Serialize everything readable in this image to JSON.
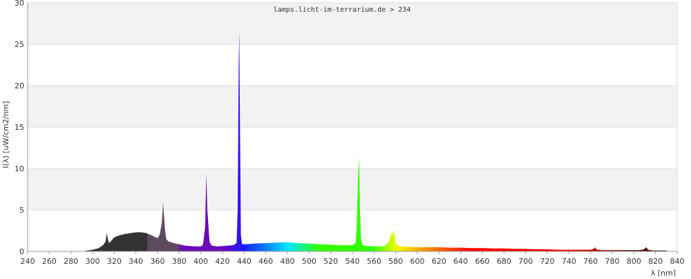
{
  "chart_data": {
    "type": "area",
    "title": "lamps.licht-im-terrarium.de > 234",
    "xlabel": "λ [nm]",
    "ylabel": "I(λ) [uW/cm2/nm]",
    "xlim": [
      240,
      840
    ],
    "ylim": [
      0,
      30
    ],
    "x_ticks": [
      240,
      260,
      280,
      300,
      320,
      340,
      360,
      380,
      400,
      420,
      440,
      460,
      480,
      500,
      520,
      540,
      560,
      580,
      600,
      620,
      640,
      660,
      680,
      700,
      720,
      740,
      760,
      780,
      800,
      820,
      840
    ],
    "y_ticks": [
      0,
      5,
      10,
      15,
      20,
      25,
      30
    ],
    "grid": true,
    "background_bands": [
      "#f2f2f2",
      "#ffffff"
    ],
    "series": [
      {
        "x": [
          240,
          290,
          295,
          300,
          305,
          308,
          310,
          312,
          313,
          314,
          315,
          316,
          318,
          320,
          325,
          330,
          335,
          340,
          345,
          350,
          355,
          360,
          362,
          364,
          365,
          366,
          367,
          368,
          370,
          375,
          380,
          385,
          390,
          395,
          400,
          402,
          404,
          405,
          406,
          408,
          410,
          415,
          420,
          425,
          430,
          433,
          434,
          435,
          435.5,
          436,
          436.5,
          437,
          438,
          440,
          445,
          450,
          460,
          470,
          480,
          490,
          500,
          510,
          520,
          530,
          540,
          543,
          544,
          545,
          546,
          546.5,
          547,
          548,
          549,
          550,
          555,
          560,
          565,
          570,
          574,
          576,
          577,
          578,
          579,
          580,
          582,
          585,
          590,
          600,
          610,
          620,
          630,
          640,
          650,
          660,
          670,
          680,
          690,
          700,
          710,
          720,
          730,
          740,
          750,
          760,
          763,
          764,
          765,
          766,
          768,
          770,
          780,
          790,
          800,
          805,
          808,
          810,
          811,
          812,
          813,
          815,
          818,
          820,
          825,
          830
        ],
        "y": [
          0,
          0,
          0.1,
          0.2,
          0.35,
          0.6,
          0.8,
          1.2,
          2.2,
          1.6,
          1.0,
          1.1,
          1.4,
          1.7,
          1.95,
          2.1,
          2.2,
          2.3,
          2.3,
          2.2,
          1.9,
          1.6,
          2.0,
          3.5,
          5.9,
          4.2,
          2.5,
          1.5,
          1.2,
          1.0,
          0.85,
          0.7,
          0.65,
          0.6,
          0.6,
          0.8,
          3.0,
          9.4,
          5.0,
          1.2,
          0.7,
          0.6,
          0.65,
          0.7,
          0.75,
          1.0,
          5.0,
          23.0,
          26.5,
          17.0,
          10.0,
          2.0,
          0.9,
          0.85,
          0.9,
          0.95,
          1.0,
          1.05,
          1.1,
          1.0,
          0.95,
          0.85,
          0.8,
          0.75,
          0.75,
          1.0,
          3.0,
          8.0,
          11.4,
          9.0,
          5.0,
          1.5,
          0.9,
          0.7,
          0.65,
          0.6,
          0.6,
          0.65,
          1.2,
          2.2,
          2.0,
          2.6,
          2.0,
          1.0,
          0.7,
          0.6,
          0.55,
          0.5,
          0.5,
          0.5,
          0.45,
          0.45,
          0.4,
          0.4,
          0.35,
          0.35,
          0.3,
          0.3,
          0.25,
          0.25,
          0.2,
          0.2,
          0.2,
          0.2,
          0.3,
          0.5,
          0.3,
          0.2,
          0.2,
          0.15,
          0.15,
          0.15,
          0.15,
          0.15,
          0.2,
          0.3,
          0.5,
          0.4,
          0.2,
          0.15,
          0.1,
          0.1,
          0.1,
          0.1
        ]
      }
    ],
    "colors": {
      "uv": "#333333",
      "uva": "#5e4a5e",
      "violet": "#6a0ab8",
      "blue": "#1a1aff",
      "cyan": "#00e5ff",
      "green": "#33ff00",
      "yellow": "#eeff00",
      "orange": "#ff8800",
      "red": "#ff0000",
      "ir": "#4a0000",
      "grid": "#dddddd",
      "axis": "#999999"
    }
  }
}
